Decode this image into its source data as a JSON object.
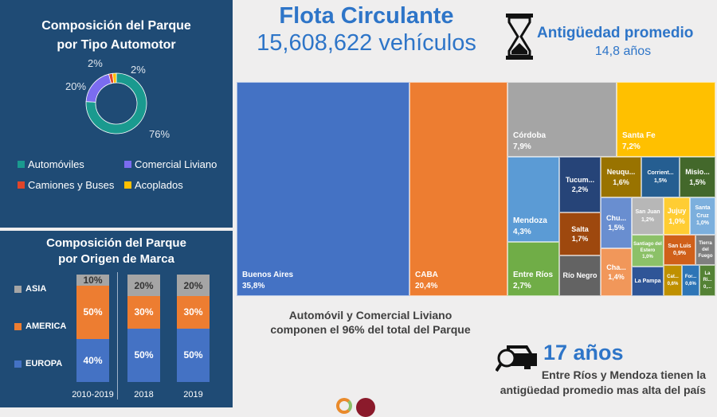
{
  "header": {
    "title": "Flota Circulante",
    "total": "15,608,622 vehículos",
    "age_label": "Antigüedad promedio",
    "age_value": "14,8 años",
    "accent": "#2e75c8"
  },
  "donut": {
    "title_line1": "Composición del Parque",
    "title_line2": "por Tipo Automotor"
  },
  "bars": {
    "title_line1": "Composición del Parque",
    "title_line2": "por Origen de Marca"
  },
  "chart_data": [
    {
      "type": "pie",
      "donut": true,
      "title": "Composición del Parque por Tipo Automotor",
      "categories": [
        "Automóviles",
        "Comercial Liviano",
        "Camiones y Buses",
        "Acoplados"
      ],
      "values": [
        76,
        20,
        2,
        2
      ],
      "labels": [
        "76%",
        "20%",
        "2%",
        "2%"
      ],
      "colors": [
        "#1a9a8f",
        "#7b6cf0",
        "#e0452a",
        "#ffc000"
      ],
      "legend": "bottom"
    },
    {
      "type": "bar",
      "stacked": true,
      "title": "Composición del Parque por Origen de Marca",
      "categories": [
        "2010-2019",
        "2018",
        "2019"
      ],
      "series": [
        {
          "name": "EUROPA",
          "values": [
            40,
            50,
            50
          ],
          "color": "#4472c4"
        },
        {
          "name": "AMERICA",
          "values": [
            50,
            30,
            30
          ],
          "color": "#ed7d31"
        },
        {
          "name": "ASIA",
          "values": [
            10,
            20,
            20
          ],
          "color": "#a5a5a5"
        }
      ],
      "unit": "%",
      "ylim": [
        0,
        100
      ],
      "legend": "left"
    },
    {
      "type": "treemap",
      "items": [
        {
          "name": "Buenos Aires",
          "value": "35,8%",
          "color": "#4472c4"
        },
        {
          "name": "CABA",
          "value": "20,4%",
          "color": "#ed7d31"
        },
        {
          "name": "Córdoba",
          "value": "7,9%",
          "color": "#a5a5a5"
        },
        {
          "name": "Santa Fe",
          "value": "7,2%",
          "color": "#ffc000"
        },
        {
          "name": "Mendoza",
          "value": "4,3%",
          "color": "#5b9bd5"
        },
        {
          "name": "Entre Ríos",
          "value": "2,7%",
          "color": "#70ad47"
        },
        {
          "name": "Tucum...",
          "value": "2,2%",
          "color": "#264478"
        },
        {
          "name": "Salta",
          "value": "1,7%",
          "color": "#9e480e"
        },
        {
          "name": "Río Negro",
          "value": "",
          "color": "#636363"
        },
        {
          "name": "Neuqu...",
          "value": "1,6%",
          "color": "#997300"
        },
        {
          "name": "Corrient...",
          "value": "1,5%",
          "color": "#255e91"
        },
        {
          "name": "Misio...",
          "value": "1,5%",
          "color": "#43682b"
        },
        {
          "name": "Chu...",
          "value": "1,5%",
          "color": "#698ed0"
        },
        {
          "name": "Cha...",
          "value": "1,4%",
          "color": "#f1975a"
        },
        {
          "name": "San Juan",
          "value": "1,2%",
          "color": "#b7b7b7"
        },
        {
          "name": "Jujuy",
          "value": "1,0%",
          "color": "#ffcd33"
        },
        {
          "name": "Santa Cruz",
          "value": "1,0%",
          "color": "#7cafdd"
        },
        {
          "name": "Santiago del Estero",
          "value": "1,0%",
          "color": "#8cc168"
        },
        {
          "name": "San Luis",
          "value": "0,9%",
          "color": "#d0601a"
        },
        {
          "name": "Tierra del Fuego",
          "value": "",
          "color": "#7f7f7f"
        },
        {
          "name": "La Pampa",
          "value": "",
          "color": "#2f5597"
        },
        {
          "name": "Cat...",
          "value": "0,6%",
          "color": "#bf9000"
        },
        {
          "name": "For...",
          "value": "0,6%",
          "color": "#2e75b6"
        },
        {
          "name": "La Ri...",
          "value": "0,...",
          "color": "#548235"
        }
      ]
    }
  ],
  "notes": {
    "light_line1": "Automóvil y Comercial Liviano",
    "light_line2": "componen el 96% del total del Parque",
    "max_age": "17 años",
    "max_line1": "Entre Ríos y Mendoza tienen la",
    "max_line2": "antigüedad promedio mas alta del país"
  }
}
